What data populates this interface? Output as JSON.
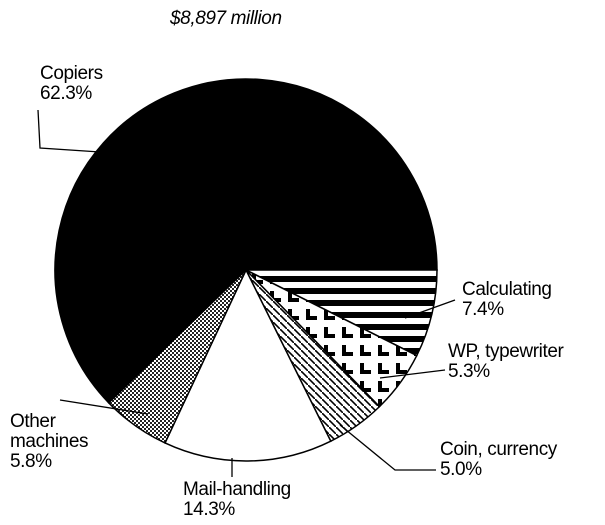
{
  "chart_data": {
    "type": "pie",
    "title": "$8,897 million",
    "categories": [
      "Copiers",
      "Calculating",
      "WP, typewriter",
      "Coin, currency",
      "Mail-handling",
      "Other machines"
    ],
    "values": [
      62.3,
      7.4,
      5.3,
      5.0,
      14.3,
      5.8
    ],
    "value_labels": [
      "62.3%",
      "7.4%",
      "5.3%",
      "5.0%",
      "14.3%",
      "5.8%"
    ],
    "fills": [
      "#000000",
      "url(#hstripe)",
      "url(#chevron)",
      "url(#diag)",
      "#ffffff",
      "url(#dots)"
    ]
  }
}
